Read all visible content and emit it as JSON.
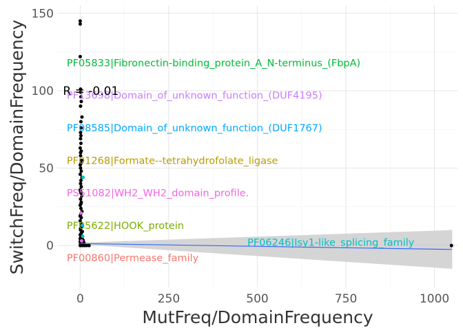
{
  "chart_data": {
    "type": "scatter",
    "xlabel": "MutFreq/DomainFrequency",
    "ylabel": "SwitchFreq/DomainFrequency",
    "xlim": [
      -65,
      1065
    ],
    "ylim": [
      -27,
      155
    ],
    "x_ticks": [
      0,
      250,
      500,
      750,
      1000
    ],
    "y_ticks": [
      0,
      50,
      100,
      150
    ],
    "grid": true,
    "regression": {
      "start": [
        0,
        1.3
      ],
      "end": [
        1050,
        -2.5
      ],
      "ci_at_end": [
        -15,
        10
      ],
      "color": "#3366FF",
      "band_color": "#d0d0d0"
    },
    "correlation_label": "R = -0.01",
    "correlation_position": [
      0,
      100
    ],
    "points": [
      {
        "x": 0,
        "y": 145
      },
      {
        "x": 0,
        "y": 143
      },
      {
        "x": 0,
        "y": 122
      },
      {
        "x": 1,
        "y": 101
      },
      {
        "x": 1,
        "y": 99
      },
      {
        "x": 2,
        "y": 96
      },
      {
        "x": 3,
        "y": 93
      },
      {
        "x": 1,
        "y": 90
      },
      {
        "x": 5,
        "y": 83
      },
      {
        "x": 2,
        "y": 80
      },
      {
        "x": 3,
        "y": 76
      },
      {
        "x": 1,
        "y": 73
      },
      {
        "x": 2,
        "y": 71
      },
      {
        "x": 1,
        "y": 69
      },
      {
        "x": 2,
        "y": 66
      },
      {
        "x": 0,
        "y": 63
      },
      {
        "x": 3,
        "y": 61
      },
      {
        "x": 1,
        "y": 58
      },
      {
        "x": 4,
        "y": 55
      },
      {
        "x": 2,
        "y": 53
      },
      {
        "x": 1,
        "y": 50
      },
      {
        "x": 3,
        "y": 48
      },
      {
        "x": 0,
        "y": 46
      },
      {
        "x": 5,
        "y": 44
      },
      {
        "x": 2,
        "y": 42
      },
      {
        "x": 1,
        "y": 40
      },
      {
        "x": 3,
        "y": 38
      },
      {
        "x": 0,
        "y": 36
      },
      {
        "x": 2,
        "y": 34
      },
      {
        "x": 4,
        "y": 32
      },
      {
        "x": 1,
        "y": 30
      },
      {
        "x": 3,
        "y": 28
      },
      {
        "x": 0,
        "y": 26
      },
      {
        "x": 2,
        "y": 24
      },
      {
        "x": 5,
        "y": 22
      },
      {
        "x": 1,
        "y": 20
      },
      {
        "x": 3,
        "y": 18
      },
      {
        "x": 0,
        "y": 16
      },
      {
        "x": 2,
        "y": 14
      },
      {
        "x": 4,
        "y": 12
      },
      {
        "x": 1,
        "y": 10
      },
      {
        "x": 6,
        "y": 9
      },
      {
        "x": 3,
        "y": 8
      },
      {
        "x": 0,
        "y": 7
      },
      {
        "x": 2,
        "y": 6
      },
      {
        "x": 5,
        "y": 5
      },
      {
        "x": 1,
        "y": 4
      },
      {
        "x": 8,
        "y": 3.5
      },
      {
        "x": 3,
        "y": 3
      },
      {
        "x": 0,
        "y": 2.5
      },
      {
        "x": 10,
        "y": 2
      },
      {
        "x": 2,
        "y": 1.5
      },
      {
        "x": 4,
        "y": 1
      },
      {
        "x": 1,
        "y": 0.5
      },
      {
        "x": 0,
        "y": 0
      },
      {
        "x": 6,
        "y": 0
      },
      {
        "x": 12,
        "y": 0
      },
      {
        "x": 18,
        "y": 0
      },
      {
        "x": 25,
        "y": 0
      },
      {
        "x": 3,
        "y": 0.2
      },
      {
        "x": 1,
        "y": 1.2
      },
      {
        "x": 2,
        "y": 2.2
      },
      {
        "x": 0,
        "y": 4.5
      },
      {
        "x": 1,
        "y": 11
      },
      {
        "x": 0,
        "y": 19
      },
      {
        "x": 2,
        "y": 27
      },
      {
        "x": 1,
        "y": 35
      },
      {
        "x": 0,
        "y": 52
      },
      {
        "x": 1,
        "y": 60
      },
      {
        "x": 1048,
        "y": 0
      }
    ],
    "colored_points": [
      {
        "x": 8,
        "y": 44,
        "color": "#00BFC4"
      },
      {
        "x": 6,
        "y": 13,
        "color": "#00B0F6"
      },
      {
        "x": 7,
        "y": 6,
        "color": "#00BFC4"
      },
      {
        "x": 4,
        "y": 3,
        "color": "#E76BF3"
      },
      {
        "x": 2,
        "y": 21,
        "color": "#E76BF3"
      }
    ],
    "annotations": [
      {
        "text": "PF05833|Fibronectin-binding_protein_A_N-terminus_(FbpA)",
        "x": -38,
        "y": 118,
        "color": "#00BA38"
      },
      {
        "text": "PF13698|Domain_of_unknown_function_(DUF4195)",
        "x": -38,
        "y": 97,
        "color": "#C77CFF"
      },
      {
        "text": "PF08585|Domain_of_unknown_function_(DUF1767)",
        "x": -38,
        "y": 76,
        "color": "#00A9FF"
      },
      {
        "text": "PF01268|Formate--tetrahydrofolate_ligase",
        "x": -38,
        "y": 55,
        "color": "#B89B00"
      },
      {
        "text": "PS51082|WH2_WH2_domain_profile.",
        "x": -38,
        "y": 34,
        "color": "#F564E3"
      },
      {
        "text": "PF05622|HOOK_protein",
        "x": -38,
        "y": 13,
        "color": "#7CAE00"
      },
      {
        "text": "PF06246|Isy1-like_splicing_family",
        "x": 472,
        "y": 2,
        "color": "#00BFC4"
      },
      {
        "text": "PF00860|Permease_family",
        "x": -38,
        "y": -8,
        "color": "#F8766D"
      }
    ]
  }
}
